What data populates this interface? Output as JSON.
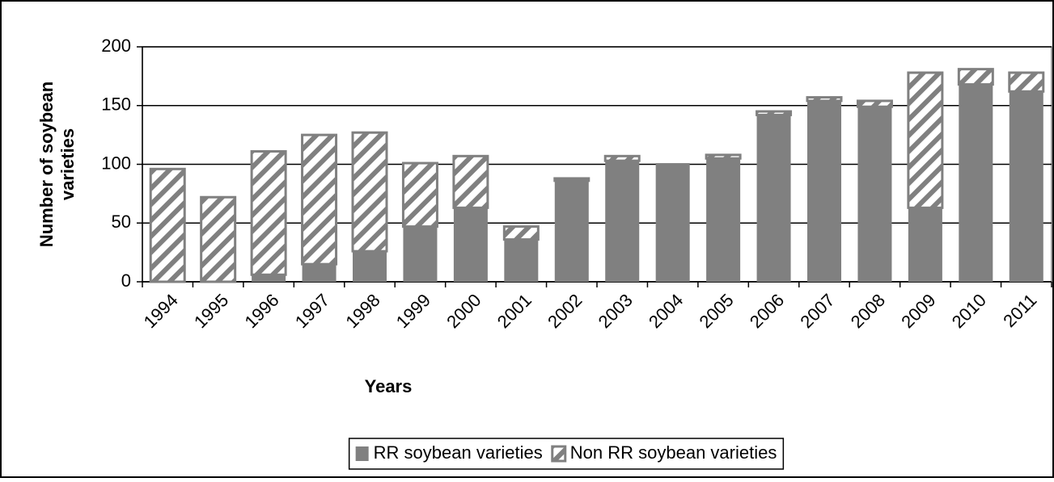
{
  "chart_data": {
    "type": "stacked_bar",
    "x_label": "Years",
    "y_label": "Number of soybean varieties",
    "categories": [
      "1994",
      "1995",
      "1996",
      "1997",
      "1998",
      "1999",
      "2000",
      "2001",
      "2002",
      "2003",
      "2004",
      "2005",
      "2006",
      "2007",
      "2008",
      "2009",
      "2010",
      "2011"
    ],
    "series": [
      {
        "name": "RR soybean varieties",
        "color": "#808080",
        "hatch": false,
        "values": [
          0,
          0,
          6,
          15,
          26,
          47,
          63,
          36,
          86,
          103,
          101,
          105,
          142,
          154,
          149,
          63,
          168,
          162
        ]
      },
      {
        "name": "Non RR soybean varieties",
        "color": "#808080",
        "hatch": true,
        "values": [
          96,
          72,
          105,
          110,
          101,
          54,
          44,
          11,
          2,
          4,
          0,
          3,
          3,
          3,
          5,
          115,
          13,
          16
        ]
      }
    ],
    "ylim": [
      0,
      200
    ],
    "yticks": [
      0,
      50,
      100,
      150,
      200
    ],
    "grid": true,
    "legend": "bottom"
  }
}
